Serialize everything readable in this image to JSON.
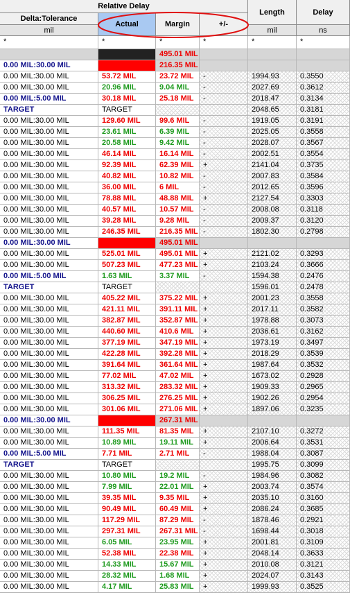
{
  "header": {
    "group": "Relative Delay",
    "columns": [
      "Delta:Tolerance",
      "Actual",
      "Margin",
      "+/-",
      "Length",
      "Delay"
    ],
    "units": [
      "mil",
      null,
      null,
      null,
      "mil",
      "ns"
    ],
    "filters": [
      "*",
      "*",
      "*",
      "*",
      "*",
      "*"
    ]
  },
  "colors": {
    "fail": "#ee0000",
    "pass": "#1e9a1e",
    "emphasis": "#14148c",
    "group_band": "#d6d6d6",
    "active_header": "#a9c9f2",
    "annotation": "#e01010"
  },
  "rows": [
    {
      "cells": [
        null,
        null,
        "495.01 MIL",
        null,
        null,
        null
      ],
      "fill": "#222222",
      "text": "fail"
    },
    {
      "cells": [
        "0.00 MIL:30.00 MIL",
        null,
        "216.35 MIL",
        null,
        null,
        null
      ],
      "fill": "#ff0000",
      "text": "fail",
      "emphasis": true
    },
    {
      "cells": [
        "0.00 MIL:30.00 MIL",
        "53.72 MIL",
        "23.72 MIL",
        "-",
        "1994.93",
        "0.3550"
      ],
      "text": "fail"
    },
    {
      "cells": [
        "0.00 MIL:30.00 MIL",
        "20.96 MIL",
        "9.04 MIL",
        "-",
        "2027.69",
        "0.3612"
      ],
      "text": "pass"
    },
    {
      "cells": [
        "0.00 MIL:5.00 MIL",
        "30.18 MIL",
        "25.18 MIL",
        "-",
        "2018.47",
        "0.3134"
      ],
      "text": "fail",
      "emphasis": true
    },
    {
      "cells": [
        "TARGET",
        "TARGET",
        null,
        null,
        "2048.65",
        "0.3181"
      ],
      "emphasis": true
    },
    {
      "cells": [
        "0.00 MIL:30.00 MIL",
        "129.60 MIL",
        "99.6 MIL",
        "-",
        "1919.05",
        "0.3191"
      ],
      "text": "fail"
    },
    {
      "cells": [
        "0.00 MIL:30.00 MIL",
        "23.61 MIL",
        "6.39 MIL",
        "-",
        "2025.05",
        "0.3558"
      ],
      "text": "pass"
    },
    {
      "cells": [
        "0.00 MIL:30.00 MIL",
        "20.58 MIL",
        "9.42 MIL",
        "-",
        "2028.07",
        "0.3567"
      ],
      "text": "pass"
    },
    {
      "cells": [
        "0.00 MIL:30.00 MIL",
        "46.14 MIL",
        "16.14 MIL",
        "-",
        "2002.51",
        "0.3554"
      ],
      "text": "fail"
    },
    {
      "cells": [
        "0.00 MIL:30.00 MIL",
        "92.39 MIL",
        "62.39 MIL",
        "+",
        "2141.04",
        "0.3735"
      ],
      "text": "fail"
    },
    {
      "cells": [
        "0.00 MIL:30.00 MIL",
        "40.82 MIL",
        "10.82 MIL",
        "-",
        "2007.83",
        "0.3584"
      ],
      "text": "fail"
    },
    {
      "cells": [
        "0.00 MIL:30.00 MIL",
        "36.00 MIL",
        "6 MIL",
        "-",
        "2012.65",
        "0.3596"
      ],
      "text": "fail"
    },
    {
      "cells": [
        "0.00 MIL:30.00 MIL",
        "78.88 MIL",
        "48.88 MIL",
        "+",
        "2127.54",
        "0.3303"
      ],
      "text": "fail"
    },
    {
      "cells": [
        "0.00 MIL:30.00 MIL",
        "40.57 MIL",
        "10.57 MIL",
        "-",
        "2008.08",
        "0.3118"
      ],
      "text": "fail"
    },
    {
      "cells": [
        "0.00 MIL:30.00 MIL",
        "39.28 MIL",
        "9.28 MIL",
        "-",
        "2009.37",
        "0.3120"
      ],
      "text": "fail"
    },
    {
      "cells": [
        "0.00 MIL:30.00 MIL",
        "246.35 MIL",
        "216.35 MIL",
        "-",
        "1802.30",
        "0.2798"
      ],
      "text": "fail"
    },
    {
      "cells": [
        "0.00 MIL:30.00 MIL",
        null,
        "495.01 MIL",
        null,
        null,
        null
      ],
      "fill": "#ff0000",
      "text": "fail",
      "emphasis": true
    },
    {
      "cells": [
        "0.00 MIL:30.00 MIL",
        "525.01 MIL",
        "495.01 MIL",
        "+",
        "2121.02",
        "0.3293"
      ],
      "text": "fail"
    },
    {
      "cells": [
        "0.00 MIL:30.00 MIL",
        "507.23 MIL",
        "477.23 MIL",
        "+",
        "2103.24",
        "0.3666"
      ],
      "text": "fail"
    },
    {
      "cells": [
        "0.00 MIL:5.00 MIL",
        "1.63 MIL",
        "3.37 MIL",
        "-",
        "1594.38",
        "0.2476"
      ],
      "text": "pass",
      "emphasis": true
    },
    {
      "cells": [
        "TARGET",
        "TARGET",
        null,
        null,
        "1596.01",
        "0.2478"
      ],
      "emphasis": true
    },
    {
      "cells": [
        "0.00 MIL:30.00 MIL",
        "405.22 MIL",
        "375.22 MIL",
        "+",
        "2001.23",
        "0.3558"
      ],
      "text": "fail"
    },
    {
      "cells": [
        "0.00 MIL:30.00 MIL",
        "421.11 MIL",
        "391.11 MIL",
        "+",
        "2017.11",
        "0.3582"
      ],
      "text": "fail"
    },
    {
      "cells": [
        "0.00 MIL:30.00 MIL",
        "382.87 MIL",
        "352.87 MIL",
        "+",
        "1978.88",
        "0.3073"
      ],
      "text": "fail"
    },
    {
      "cells": [
        "0.00 MIL:30.00 MIL",
        "440.60 MIL",
        "410.6 MIL",
        "+",
        "2036.61",
        "0.3162"
      ],
      "text": "fail"
    },
    {
      "cells": [
        "0.00 MIL:30.00 MIL",
        "377.19 MIL",
        "347.19 MIL",
        "+",
        "1973.19",
        "0.3497"
      ],
      "text": "fail"
    },
    {
      "cells": [
        "0.00 MIL:30.00 MIL",
        "422.28 MIL",
        "392.28 MIL",
        "+",
        "2018.29",
        "0.3539"
      ],
      "text": "fail"
    },
    {
      "cells": [
        "0.00 MIL:30.00 MIL",
        "391.64 MIL",
        "361.64 MIL",
        "+",
        "1987.64",
        "0.3532"
      ],
      "text": "fail"
    },
    {
      "cells": [
        "0.00 MIL:30.00 MIL",
        "77.02 MIL",
        "47.02 MIL",
        "+",
        "1673.02",
        "0.2928"
      ],
      "text": "fail"
    },
    {
      "cells": [
        "0.00 MIL:30.00 MIL",
        "313.32 MIL",
        "283.32 MIL",
        "+",
        "1909.33",
        "0.2965"
      ],
      "text": "fail"
    },
    {
      "cells": [
        "0.00 MIL:30.00 MIL",
        "306.25 MIL",
        "276.25 MIL",
        "+",
        "1902.26",
        "0.2954"
      ],
      "text": "fail"
    },
    {
      "cells": [
        "0.00 MIL:30.00 MIL",
        "301.06 MIL",
        "271.06 MIL",
        "+",
        "1897.06",
        "0.3235"
      ],
      "text": "fail"
    },
    {
      "cells": [
        "0.00 MIL:30.00 MIL",
        null,
        "267.31 MIL",
        null,
        null,
        null
      ],
      "fill": "#ff0000",
      "text": "fail",
      "emphasis": true
    },
    {
      "cells": [
        "0.00 MIL:30.00 MIL",
        "111.35 MIL",
        "81.35 MIL",
        "+",
        "2107.10",
        "0.3272"
      ],
      "text": "fail"
    },
    {
      "cells": [
        "0.00 MIL:30.00 MIL",
        "10.89 MIL",
        "19.11 MIL",
        "+",
        "2006.64",
        "0.3531"
      ],
      "text": "pass"
    },
    {
      "cells": [
        "0.00 MIL:5.00 MIL",
        "7.71 MIL",
        "2.71 MIL",
        "-",
        "1988.04",
        "0.3087"
      ],
      "text": "fail",
      "emphasis": true
    },
    {
      "cells": [
        "TARGET",
        "TARGET",
        null,
        null,
        "1995.75",
        "0.3099"
      ],
      "emphasis": true
    },
    {
      "cells": [
        "0.00 MIL:30.00 MIL",
        "10.80 MIL",
        "19.2 MIL",
        "-",
        "1984.96",
        "0.3082"
      ],
      "text": "pass"
    },
    {
      "cells": [
        "0.00 MIL:30.00 MIL",
        "7.99 MIL",
        "22.01 MIL",
        "+",
        "2003.74",
        "0.3574"
      ],
      "text": "pass"
    },
    {
      "cells": [
        "0.00 MIL:30.00 MIL",
        "39.35 MIL",
        "9.35 MIL",
        "+",
        "2035.10",
        "0.3160"
      ],
      "text": "fail"
    },
    {
      "cells": [
        "0.00 MIL:30.00 MIL",
        "90.49 MIL",
        "60.49 MIL",
        "+",
        "2086.24",
        "0.3685"
      ],
      "text": "fail"
    },
    {
      "cells": [
        "0.00 MIL:30.00 MIL",
        "117.29 MIL",
        "87.29 MIL",
        "-",
        "1878.46",
        "0.2921"
      ],
      "text": "fail"
    },
    {
      "cells": [
        "0.00 MIL:30.00 MIL",
        "297.31 MIL",
        "267.31 MIL",
        "-",
        "1698.44",
        "0.3018"
      ],
      "text": "fail"
    },
    {
      "cells": [
        "0.00 MIL:30.00 MIL",
        "6.05 MIL",
        "23.95 MIL",
        "+",
        "2001.81",
        "0.3109"
      ],
      "text": "pass"
    },
    {
      "cells": [
        "0.00 MIL:30.00 MIL",
        "52.38 MIL",
        "22.38 MIL",
        "+",
        "2048.14",
        "0.3633"
      ],
      "text": "fail"
    },
    {
      "cells": [
        "0.00 MIL:30.00 MIL",
        "14.33 MIL",
        "15.67 MIL",
        "+",
        "2010.08",
        "0.3121"
      ],
      "text": "pass"
    },
    {
      "cells": [
        "0.00 MIL:30.00 MIL",
        "28.32 MIL",
        "1.68 MIL",
        "+",
        "2024.07",
        "0.3143"
      ],
      "text": "pass"
    },
    {
      "cells": [
        "0.00 MIL:30.00 MIL",
        "4.17 MIL",
        "25.83 MIL",
        "+",
        "1999.93",
        "0.3525"
      ],
      "text": "pass"
    }
  ]
}
